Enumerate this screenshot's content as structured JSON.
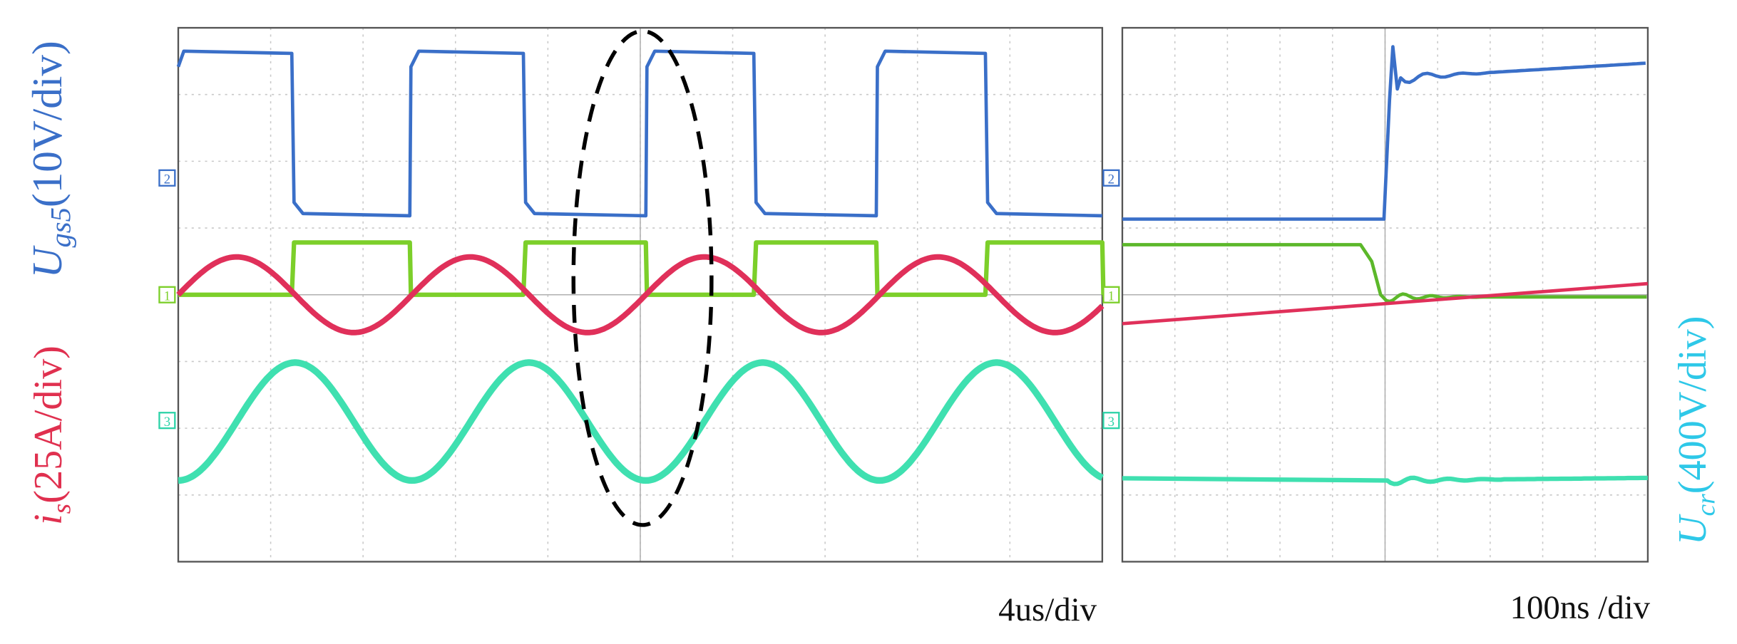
{
  "left_labels": {
    "gate_voltage": {
      "symbol": "U",
      "subscript": "gs5",
      "unit": "(10V/div)"
    },
    "current": {
      "symbol": "i",
      "subscript": "s",
      "unit": "(25A/div)"
    }
  },
  "right_label": {
    "symbol": "U",
    "subscript": "cr",
    "unit": "(400V/div)"
  },
  "panels": [
    {
      "timebase": "4us/div",
      "markers": [
        "2",
        "1",
        "3"
      ]
    },
    {
      "timebase": "100ns /div",
      "markers": [
        "2",
        "1",
        "3"
      ]
    }
  ]
}
